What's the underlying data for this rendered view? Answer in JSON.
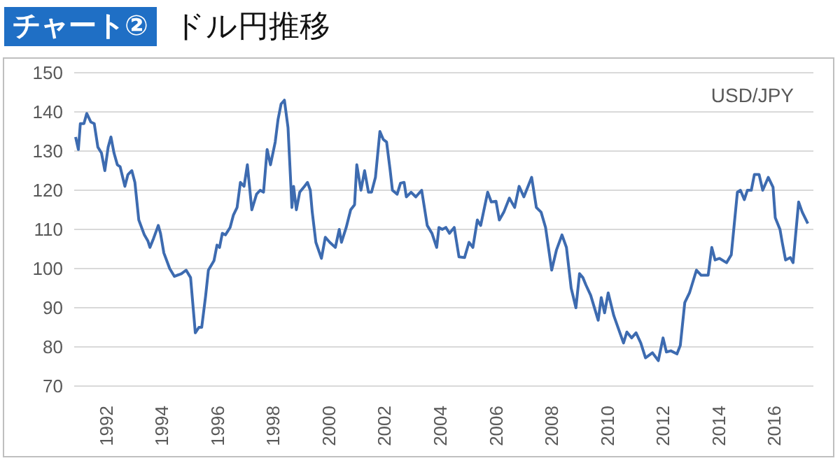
{
  "chart_data": {
    "type": "line",
    "title": "チャート②",
    "subtitle": "ドル円推移",
    "annotations": [
      "USD/JPY"
    ],
    "x": [
      1990.9,
      1991.0,
      1991.07,
      1991.2,
      1991.3,
      1991.45,
      1991.57,
      1991.7,
      1991.83,
      1991.95,
      1992.07,
      1992.17,
      1992.28,
      1992.4,
      1992.5,
      1992.67,
      1992.78,
      1992.92,
      1993.03,
      1993.17,
      1993.37,
      1993.5,
      1993.57,
      1993.7,
      1993.87,
      1993.95,
      1994.07,
      1994.28,
      1994.45,
      1994.7,
      1994.87,
      1995.03,
      1995.2,
      1995.33,
      1995.43,
      1995.57,
      1995.67,
      1995.87,
      1995.98,
      1996.07,
      1996.17,
      1996.28,
      1996.45,
      1996.57,
      1996.7,
      1996.82,
      1996.95,
      1997.07,
      1997.23,
      1997.4,
      1997.53,
      1997.65,
      1997.78,
      1997.9,
      1998.07,
      1998.17,
      1998.28,
      1998.4,
      1998.53,
      1998.62,
      1998.67,
      1998.73,
      1998.83,
      1998.95,
      1999.12,
      1999.23,
      1999.33,
      1999.4,
      1999.53,
      1999.73,
      1999.87,
      2000.03,
      2000.23,
      2000.37,
      2000.45,
      2000.62,
      2000.78,
      2000.92,
      2001.0,
      2001.15,
      2001.28,
      2001.42,
      2001.53,
      2001.67,
      2001.83,
      2001.95,
      2002.07,
      2002.2,
      2002.28,
      2002.45,
      2002.57,
      2002.7,
      2002.78,
      2002.95,
      2003.12,
      2003.33,
      2003.53,
      2003.7,
      2003.87,
      2003.95,
      2004.07,
      2004.2,
      2004.33,
      2004.5,
      2004.67,
      2004.87,
      2005.03,
      2005.17,
      2005.33,
      2005.45,
      2005.7,
      2005.83,
      2006.0,
      2006.12,
      2006.28,
      2006.48,
      2006.67,
      2006.83,
      2007.0,
      2007.28,
      2007.45,
      2007.62,
      2007.78,
      2008.0,
      2008.17,
      2008.37,
      2008.53,
      2008.7,
      2008.87,
      2009.0,
      2009.12,
      2009.23,
      2009.4,
      2009.67,
      2009.78,
      2009.9,
      2010.03,
      2010.23,
      2010.45,
      2010.58,
      2010.7,
      2010.87,
      2011.03,
      2011.2,
      2011.37,
      2011.62,
      2011.83,
      2012.0,
      2012.12,
      2012.28,
      2012.5,
      2012.62,
      2012.78,
      2012.95,
      2013.2,
      2013.37,
      2013.62,
      2013.75,
      2013.87,
      2014.03,
      2014.28,
      2014.45,
      2014.67,
      2014.78,
      2014.92,
      2015.03,
      2015.17,
      2015.28,
      2015.45,
      2015.58,
      2015.78,
      2015.95,
      2016.03,
      2016.2,
      2016.28,
      2016.4,
      2016.57,
      2016.67,
      2016.87,
      2017.0,
      2017.2
    ],
    "series": [
      {
        "color": "#3d6bb0",
        "values": [
          133.6,
          130.4,
          137,
          137,
          139.6,
          137.4,
          137,
          131,
          129.5,
          125,
          131,
          133.6,
          129.5,
          126.5,
          126,
          121,
          124,
          125,
          122,
          112.4,
          108.6,
          107,
          105.4,
          107.7,
          111,
          109,
          104,
          100,
          98,
          98.7,
          99.6,
          97.7,
          83.6,
          85,
          85,
          93,
          99.6,
          102,
          106,
          105.4,
          109,
          108.6,
          110.5,
          113.7,
          115.6,
          122,
          121,
          126.5,
          115,
          119,
          120,
          119.5,
          130.4,
          126.5,
          132.3,
          138,
          142,
          143,
          136,
          123,
          115.6,
          121,
          115,
          119.5,
          121,
          122,
          120,
          114.4,
          106.7,
          102.6,
          108,
          106.7,
          105.4,
          110,
          106.7,
          110.5,
          115,
          116.3,
          126.5,
          120,
          125,
          119.5,
          119.5,
          123.3,
          135,
          133,
          132.3,
          125,
          120,
          119,
          121.8,
          122,
          118.3,
          119.5,
          118.3,
          120,
          111,
          109,
          105.4,
          110.5,
          110,
          110.5,
          109,
          110.5,
          103,
          102.8,
          106.7,
          105.4,
          112.4,
          111,
          119.5,
          117,
          117.2,
          112.4,
          114.4,
          118,
          115.6,
          121,
          118.3,
          123.3,
          115.6,
          114.4,
          110.5,
          99.6,
          104.7,
          108.6,
          105.4,
          95,
          90,
          98.7,
          97.7,
          95.8,
          93.2,
          86.8,
          92.6,
          88.7,
          93.8,
          88,
          83.6,
          81,
          83.8,
          82.3,
          83.6,
          81,
          77.2,
          78.5,
          76.5,
          82.3,
          78.7,
          79,
          78.2,
          80.4,
          91.3,
          93.8,
          99.6,
          98.3,
          98.3,
          105.4,
          102.2,
          102.6,
          101.5,
          103.5,
          119.5,
          120,
          117.6,
          120,
          120,
          124,
          124,
          120,
          123.3,
          120.8,
          113,
          110,
          106.7,
          102.2,
          102.8,
          101.5,
          117,
          114.4,
          111.5
        ]
      }
    ],
    "xlim": [
      1990.85,
      2017.4
    ],
    "xticks": [
      1992,
      1994,
      1996,
      1998,
      2000,
      2002,
      2004,
      2006,
      2008,
      2010,
      2012,
      2014,
      2016
    ],
    "ylim": [
      70,
      150
    ],
    "yticks": [
      70,
      80,
      90,
      100,
      110,
      120,
      130,
      140,
      150
    ],
    "grid": "y",
    "marker": "none",
    "line_style": "solid"
  }
}
